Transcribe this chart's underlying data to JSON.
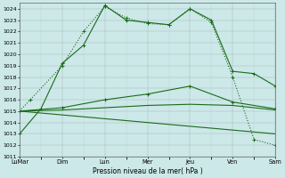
{
  "xlabel": "Pression niveau de la mer( hPa )",
  "background_color": "#cce8e8",
  "grid_color": "#999999",
  "line_color": "#1a6b1a",
  "ylim": [
    1011,
    1024.5
  ],
  "yticks": [
    1011,
    1012,
    1013,
    1014,
    1015,
    1016,
    1017,
    1018,
    1019,
    1020,
    1021,
    1022,
    1023,
    1024
  ],
  "x_labels": [
    "LuMar",
    "Dim",
    "Lun",
    "Mer",
    "Jeu",
    "Ven",
    "Sam"
  ],
  "x_positions": [
    0,
    2,
    4,
    6,
    8,
    10,
    12
  ],
  "xlim": [
    0,
    12
  ],
  "line_dotted_markers": {
    "x": [
      0,
      0.5,
      2,
      3,
      4,
      5,
      6,
      7,
      8,
      9,
      10,
      11,
      12
    ],
    "y": [
      1015.0,
      1016.0,
      1019.0,
      1022.0,
      1024.2,
      1023.2,
      1022.7,
      1022.6,
      1024.0,
      1022.8,
      1018.0,
      1012.5,
      1012.0
    ],
    "style": ":"
  },
  "line_solid_high": {
    "x": [
      0,
      1,
      2,
      3,
      4,
      5,
      6,
      7,
      8,
      9,
      10,
      11,
      12
    ],
    "y": [
      1013.0,
      1015.2,
      1019.2,
      1020.8,
      1024.3,
      1023.0,
      1022.8,
      1022.6,
      1024.0,
      1023.0,
      1018.5,
      1018.3,
      1017.2
    ],
    "style": "-"
  },
  "line_mid1": {
    "x": [
      0,
      2,
      4,
      6,
      8,
      10,
      12
    ],
    "y": [
      1015.0,
      1015.3,
      1016.0,
      1016.5,
      1017.2,
      1015.8,
      1015.2
    ],
    "style": "-"
  },
  "line_mid2": {
    "x": [
      0,
      2,
      4,
      6,
      8,
      10,
      12
    ],
    "y": [
      1015.0,
      1015.1,
      1015.3,
      1015.5,
      1015.6,
      1015.5,
      1015.1
    ],
    "style": "-"
  },
  "line_diagonal": {
    "x": [
      0,
      12
    ],
    "y": [
      1015.0,
      1013.0
    ],
    "style": "-"
  },
  "markers_line1": {
    "x": [
      0,
      1,
      2,
      3,
      4,
      5,
      6,
      7,
      8,
      9,
      10,
      11,
      12
    ],
    "y": [
      1013.0,
      1015.2,
      1019.2,
      1020.8,
      1024.3,
      1023.0,
      1022.8,
      1022.6,
      1024.0,
      1023.0,
      1018.5,
      1018.3,
      1017.2
    ]
  },
  "markers_dotted": {
    "x": [
      0,
      0.5,
      2,
      3,
      4,
      5,
      6,
      7,
      8,
      9,
      10,
      11,
      12
    ],
    "y": [
      1015.0,
      1016.0,
      1019.0,
      1022.0,
      1024.2,
      1023.2,
      1022.7,
      1022.6,
      1024.0,
      1022.8,
      1018.0,
      1012.5,
      1012.0
    ]
  },
  "markers_mid1": {
    "x": [
      0,
      2,
      4,
      6,
      8,
      10,
      12
    ],
    "y": [
      1015.0,
      1015.3,
      1016.0,
      1016.5,
      1017.2,
      1015.8,
      1015.2
    ]
  }
}
